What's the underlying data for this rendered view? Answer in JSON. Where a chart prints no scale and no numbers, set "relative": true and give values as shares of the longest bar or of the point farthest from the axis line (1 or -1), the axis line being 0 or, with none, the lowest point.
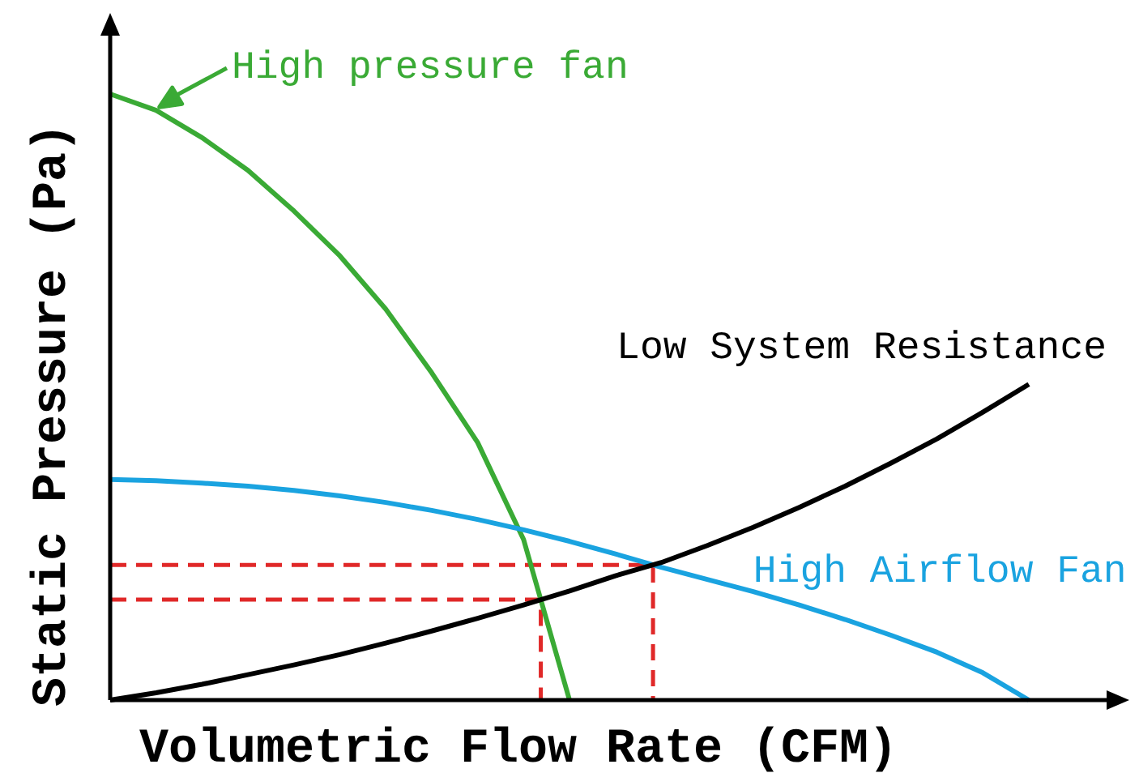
{
  "chart_data": {
    "type": "line",
    "relative": true,
    "xlabel": "Volumetric Flow Rate (CFM)",
    "ylabel": "Static Pressure (Pa)",
    "marker": "none",
    "categories": [
      null,
      null,
      null,
      null,
      null,
      null,
      null,
      null,
      null,
      null,
      null,
      null,
      null,
      null,
      null,
      null,
      null,
      null,
      null,
      null,
      null
    ],
    "series": [
      {
        "name": "High pressure fan",
        "color": "#3aaa35",
        "values": [
          1,
          0.973,
          0.928,
          0.874,
          0.807,
          0.733,
          0.645,
          0.54,
          0.425,
          0.265,
          0,
          null,
          null,
          null,
          null,
          null,
          null,
          null,
          null,
          null,
          null
        ]
      },
      {
        "name": "High Airflow Fan",
        "color": "#1aa3e0",
        "values": [
          0.364,
          0.362,
          0.358,
          0.353,
          0.346,
          0.337,
          0.326,
          0.313,
          0.298,
          0.281,
          0.262,
          0.241,
          0.219,
          0.199,
          0.179,
          0.157,
          0.133,
          0.107,
          0.079,
          0.045,
          0
        ]
      },
      {
        "name": "Low System Resistance",
        "color": "#000000",
        "values": [
          0,
          0.012,
          0.026,
          0.042,
          0.058,
          0.075,
          0.094,
          0.114,
          0.135,
          0.157,
          0.18,
          0.205,
          0.227,
          0.255,
          0.285,
          0.318,
          0.353,
          0.391,
          0.431,
          0.475,
          0.521
        ]
      }
    ]
  }
}
